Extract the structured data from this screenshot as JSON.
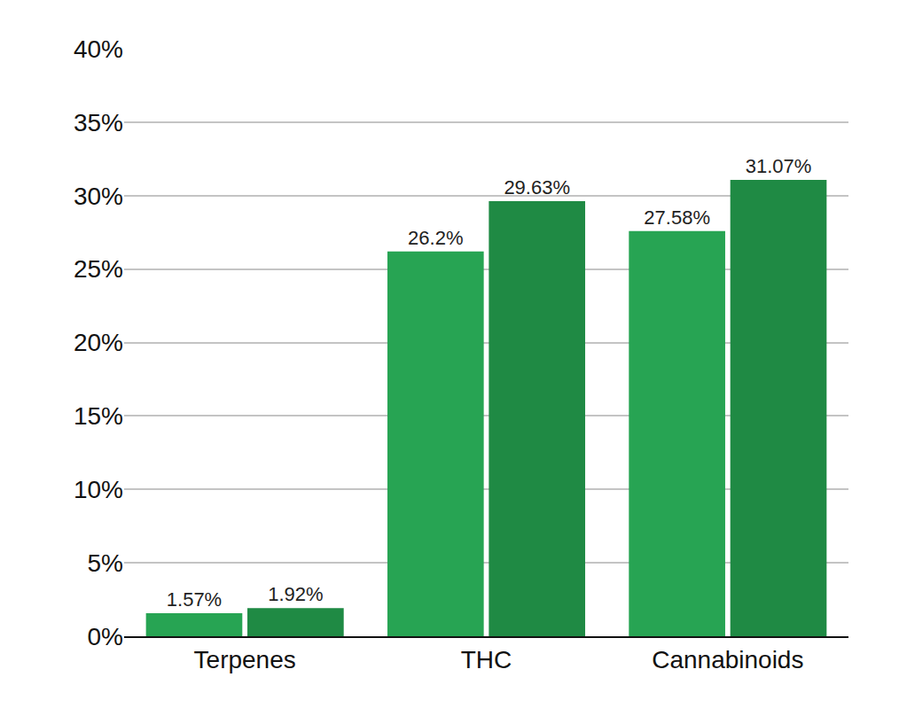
{
  "chart_data": {
    "type": "bar",
    "categories": [
      "Terpenes",
      "THC",
      "Cannabinoids"
    ],
    "series": [
      {
        "color": "#27a453",
        "values": [
          1.57,
          26.2,
          27.58
        ],
        "value_labels": [
          "1.57%",
          "26.2%",
          "27.58%"
        ]
      },
      {
        "color": "#1f8a44",
        "values": [
          1.92,
          29.63,
          31.07
        ],
        "value_labels": [
          "1.92%",
          "29.63%",
          "31.07%"
        ]
      }
    ],
    "ylim": [
      0,
      40
    ],
    "yticks": [
      {
        "value": 0,
        "label": "0%"
      },
      {
        "value": 5,
        "label": "5%"
      },
      {
        "value": 10,
        "label": "10%"
      },
      {
        "value": 15,
        "label": "15%"
      },
      {
        "value": 20,
        "label": "20%"
      },
      {
        "value": 25,
        "label": "25%"
      },
      {
        "value": 30,
        "label": "30%"
      },
      {
        "value": 35,
        "label": "35%"
      },
      {
        "value": 40,
        "label": "40%"
      }
    ],
    "grid": true,
    "data_labels": true
  }
}
